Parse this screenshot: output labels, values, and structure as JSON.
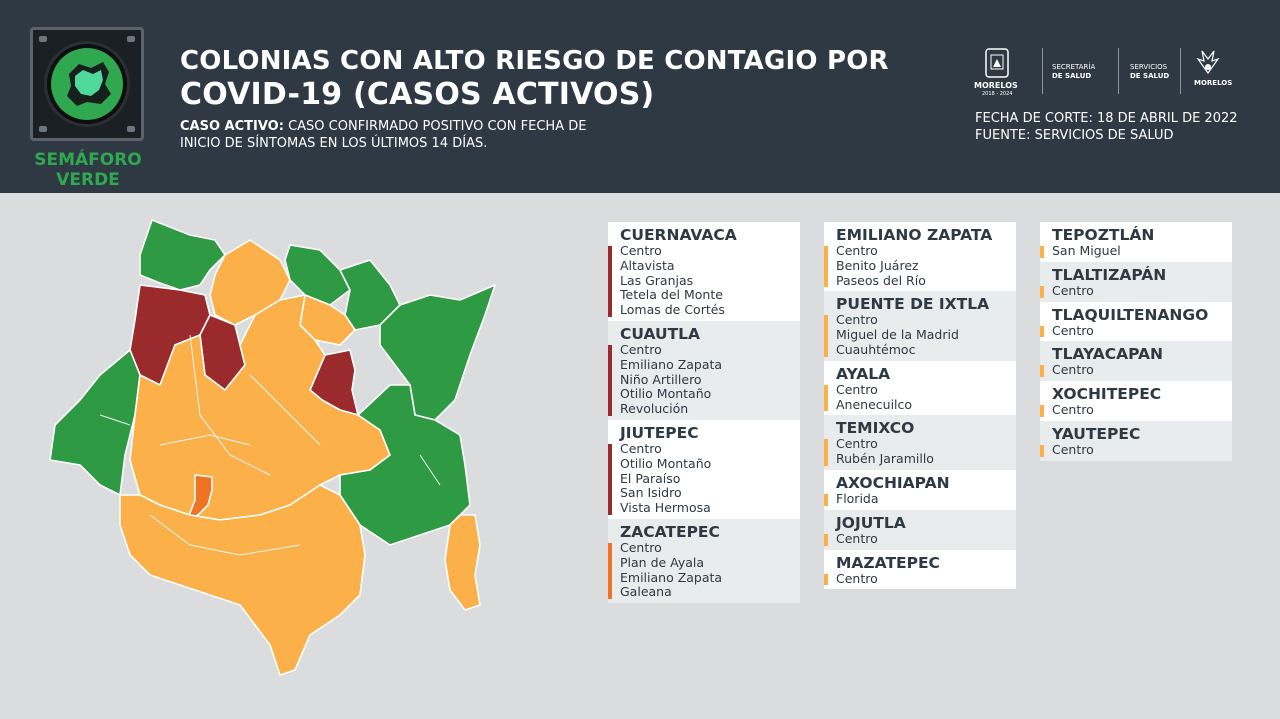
{
  "header": {
    "semaforo": {
      "line1": "SEMÁFORO",
      "line2": "VERDE",
      "icon": "morelos-state-green-icon"
    },
    "title_line1": "COLONIAS CON ALTO RIESGO DE CONTAGIO POR",
    "title_line2": "COVID-19 (CASOS ACTIVOS)",
    "definition_label": "CASO ACTIVO:",
    "definition_text": " CASO CONFIRMADO POSITIVO CON FECHA DE",
    "definition_text2": "INICIO DE SÍNTOMAS EN LOS ÚLTIMOS 14 DÍAS.",
    "logos": {
      "morelos": "MORELOS",
      "morelos_years": "2018 - 2024",
      "secretaria_1": "SECRETARÍA",
      "secretaria_2": "DE SALUD",
      "servicios_1": "SERVICIOS",
      "servicios_2": "DE SALUD",
      "right": "MORELOS"
    },
    "fecha": "FECHA DE CORTE: 18 DE ABRIL DE 2022",
    "fuente": "FUENTE: SERVICIOS DE SALUD"
  },
  "colors": {
    "header_bg": "#2e3944",
    "green": "#2e9a44",
    "orange": "#fbb04a",
    "red": "#9b2a2c",
    "dark_orange": "#f07223",
    "page_bg": "#dadcdd"
  },
  "columns": [
    [
      {
        "name": "CUERNAVACA",
        "color": "#9b2a2c",
        "colonias": [
          "Centro",
          "Altavista",
          "Las Granjas",
          "Tetela del Monte",
          "Lomas de Cortés"
        ]
      },
      {
        "name": "CUAUTLA",
        "color": "#9b2a2c",
        "colonias": [
          "Centro",
          "Emiliano Zapata",
          "Niño Artillero",
          "Otilio Montaño",
          "Revolución"
        ]
      },
      {
        "name": "JIUTEPEC",
        "color": "#9b2a2c",
        "colonias": [
          "Centro",
          "Otilio Montaño",
          "El Paraíso",
          "San Isidro",
          "Vista Hermosa"
        ]
      },
      {
        "name": "ZACATEPEC",
        "color": "#f07223",
        "colonias": [
          "Centro",
          "Plan de Ayala",
          "Emiliano Zapata",
          "Galeana"
        ]
      }
    ],
    [
      {
        "name": "EMILIANO ZAPATA",
        "color": "#fbb04a",
        "colonias": [
          "Centro",
          "Benito Juárez",
          "Paseos del Río"
        ]
      },
      {
        "name": "PUENTE DE IXTLA",
        "color": "#fbb04a",
        "colonias": [
          "Centro",
          "Miguel de la Madrid",
          "Cuauhtémoc"
        ]
      },
      {
        "name": "AYALA",
        "color": "#fbb04a",
        "colonias": [
          "Centro",
          "Anenecuilco"
        ]
      },
      {
        "name": "TEMIXCO",
        "color": "#fbb04a",
        "colonias": [
          "Centro",
          "Rubén Jaramillo"
        ]
      },
      {
        "name": "AXOCHIAPAN",
        "color": "#fbb04a",
        "colonias": [
          "Florida"
        ]
      },
      {
        "name": "JOJUTLA",
        "color": "#fbb04a",
        "colonias": [
          "Centro"
        ]
      },
      {
        "name": "MAZATEPEC",
        "color": "#fbb04a",
        "colonias": [
          "Centro"
        ]
      }
    ],
    [
      {
        "name": "TEPOZTLÁN",
        "color": "#fbb04a",
        "colonias": [
          "San Miguel"
        ]
      },
      {
        "name": "TLALTIZAPÁN",
        "color": "#fbb04a",
        "colonias": [
          "Centro"
        ]
      },
      {
        "name": "TLAQUILTENANGO",
        "color": "#fbb04a",
        "colonias": [
          "Centro"
        ]
      },
      {
        "name": "TLAYACAPAN",
        "color": "#fbb04a",
        "colonias": [
          "Centro"
        ]
      },
      {
        "name": "XOCHITEPEC",
        "color": "#fbb04a",
        "colonias": [
          "Centro"
        ]
      },
      {
        "name": "YAUTEPEC",
        "color": "#fbb04a",
        "colonias": [
          "Centro"
        ]
      }
    ]
  ]
}
